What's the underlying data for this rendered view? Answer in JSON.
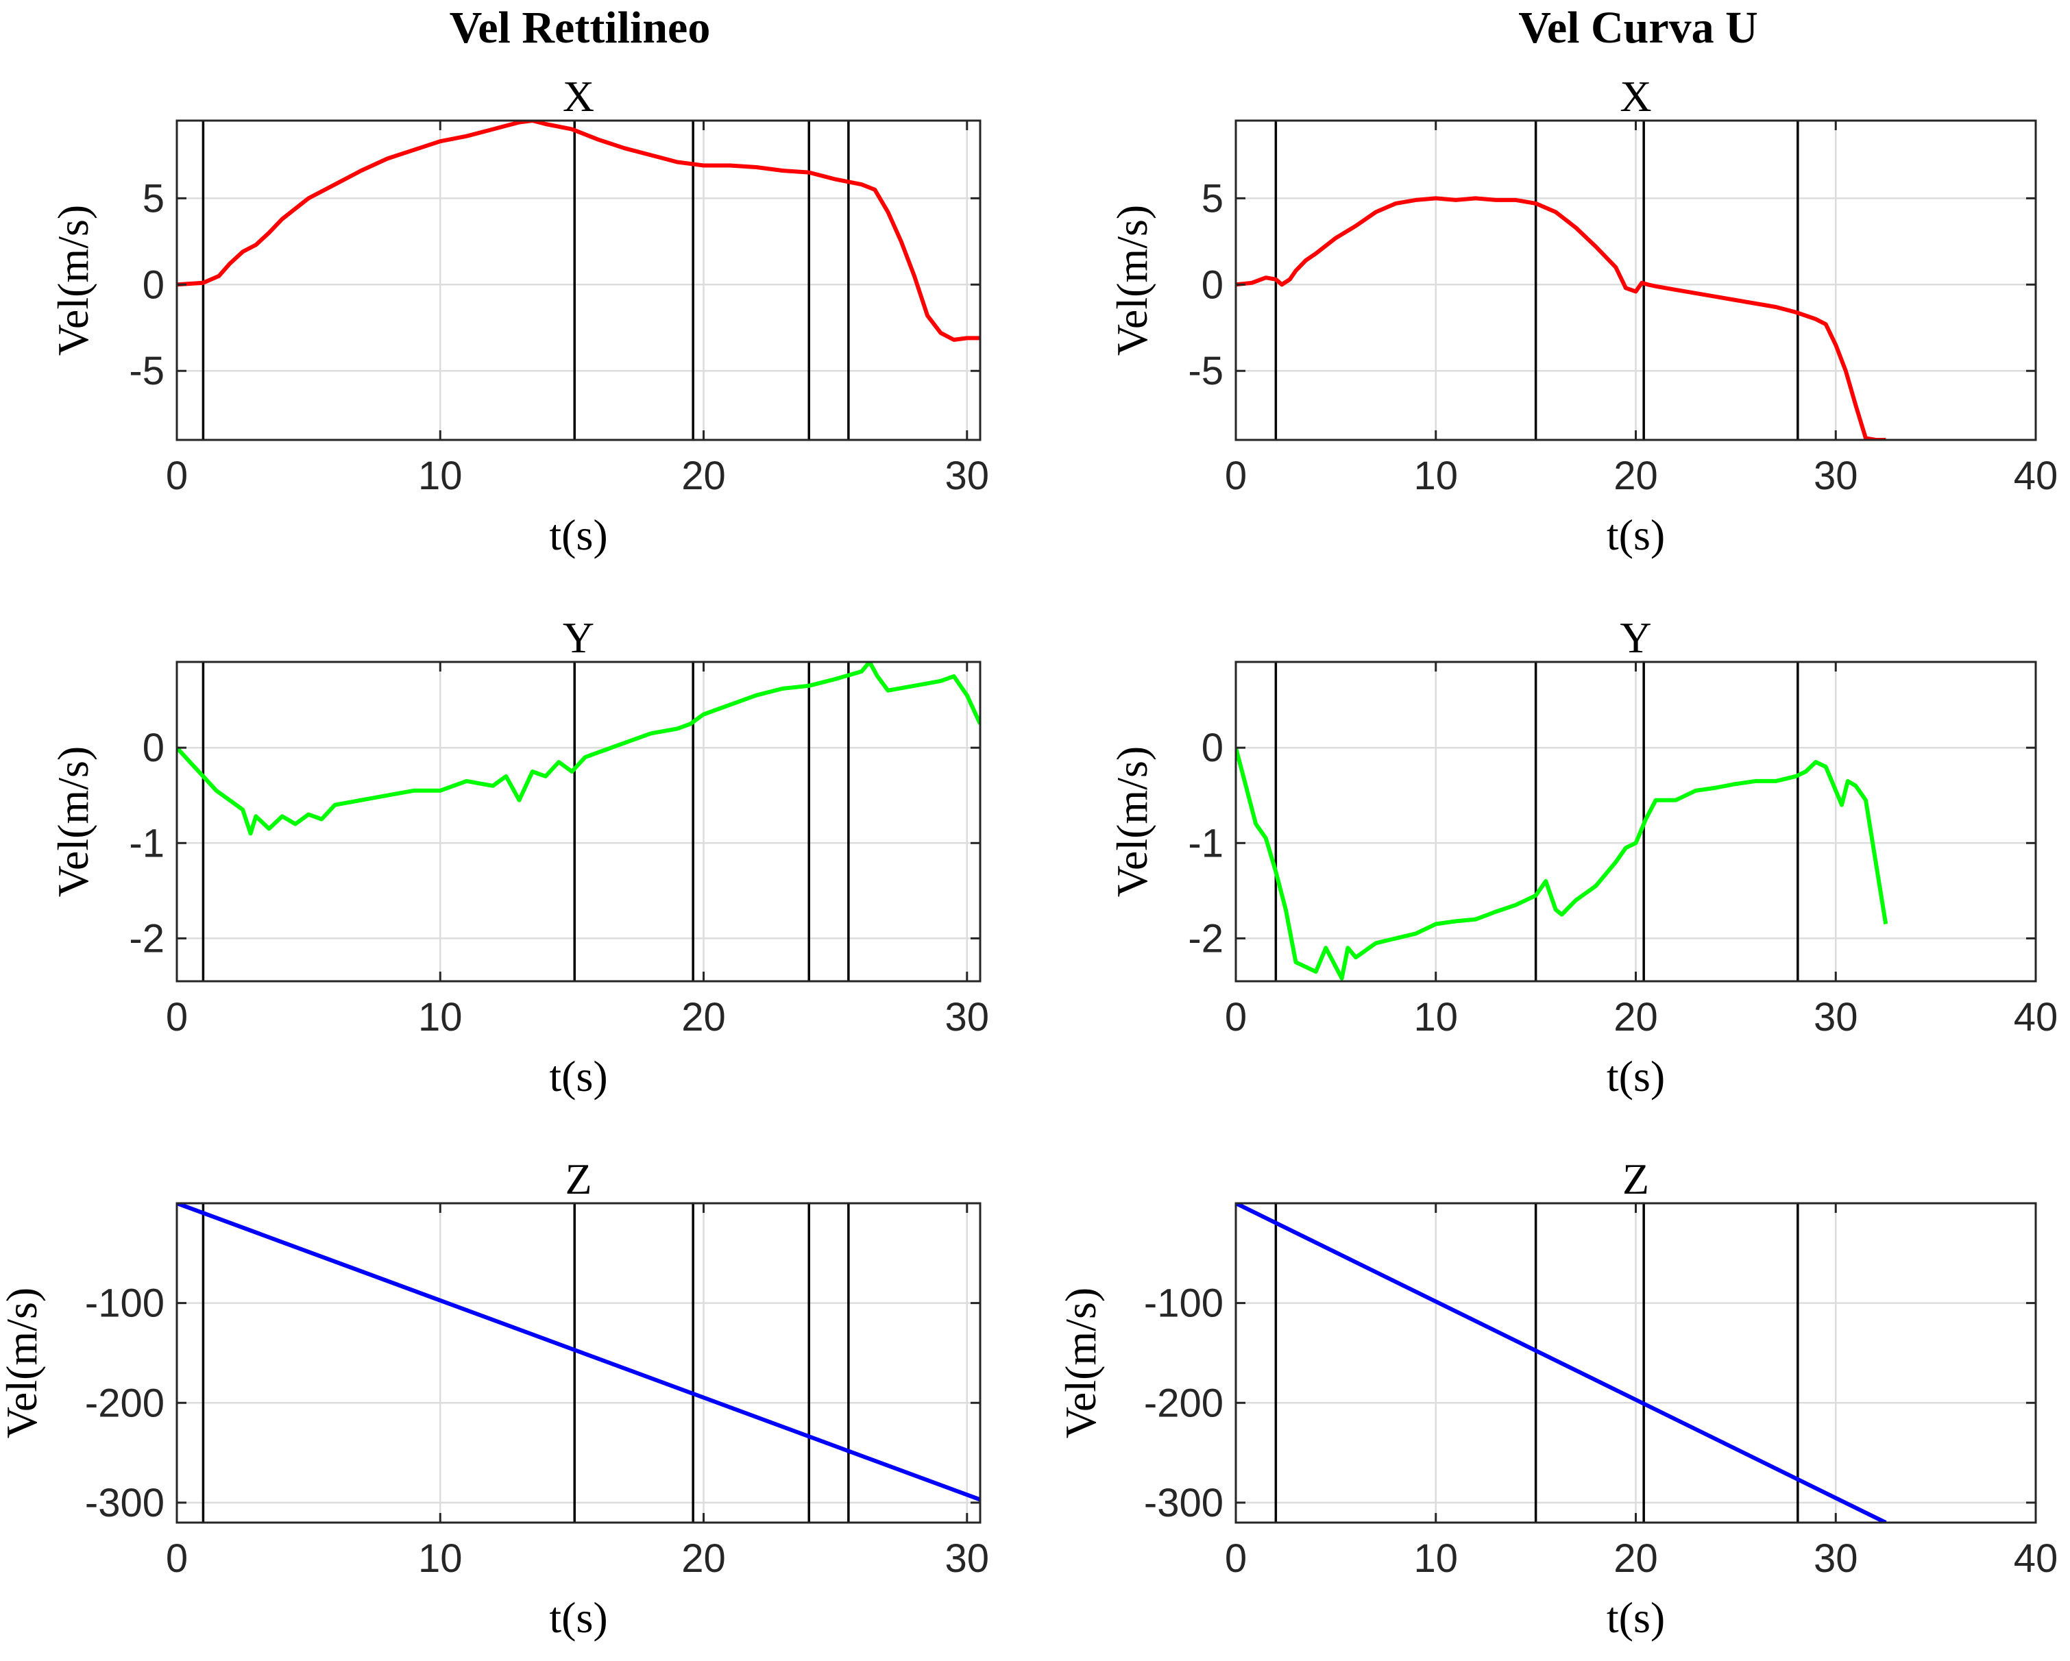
{
  "columns": [
    "Vel Rettilineo",
    "Vel Curva U"
  ],
  "chart_data": [
    {
      "type": "line",
      "title": "X",
      "column": 0,
      "xlabel": "t(s)",
      "ylabel": "Vel(m/s)",
      "xlim": [
        0,
        30.5
      ],
      "ylim": [
        -9,
        9.5
      ],
      "xticks": [
        0,
        10,
        20,
        30
      ],
      "yticks": [
        -5,
        0,
        5
      ],
      "grid": true,
      "vlines": [
        1.0,
        15.1,
        19.6,
        24.0,
        25.5
      ],
      "series": [
        {
          "color": "#ff0000",
          "x": [
            0,
            1,
            1.6,
            2,
            2.5,
            3,
            3.5,
            4,
            5,
            6,
            7,
            8,
            9,
            10,
            11,
            12,
            13,
            13.5,
            14,
            15,
            16,
            17,
            18,
            19,
            20,
            21,
            22,
            23,
            24,
            25,
            26,
            26.5,
            27,
            27.5,
            28,
            28.5,
            29,
            29.5,
            30,
            30.5
          ],
          "y": [
            0,
            0.1,
            0.5,
            1.2,
            1.9,
            2.3,
            3.0,
            3.8,
            5.0,
            5.8,
            6.6,
            7.3,
            7.8,
            8.3,
            8.6,
            9.0,
            9.4,
            9.5,
            9.3,
            9.0,
            8.4,
            7.9,
            7.5,
            7.1,
            6.9,
            6.9,
            6.8,
            6.6,
            6.5,
            6.1,
            5.8,
            5.5,
            4.2,
            2.5,
            0.5,
            -1.8,
            -2.8,
            -3.2,
            -3.1,
            -3.1
          ]
        }
      ]
    },
    {
      "type": "line",
      "title": "X",
      "column": 1,
      "xlabel": "t(s)",
      "ylabel": "Vel(m/s)",
      "xlim": [
        0,
        40
      ],
      "ylim": [
        -9,
        9.5
      ],
      "xticks": [
        0,
        10,
        20,
        30,
        40
      ],
      "yticks": [
        -5,
        0,
        5
      ],
      "grid": true,
      "vlines": [
        2.0,
        15.0,
        20.4,
        28.1
      ],
      "series": [
        {
          "color": "#ff0000",
          "x": [
            0,
            0.8,
            1.5,
            2,
            2.3,
            2.7,
            3,
            3.5,
            4,
            5,
            6,
            7,
            8,
            9,
            10,
            11,
            12,
            13,
            14,
            15,
            16,
            17,
            18,
            19,
            19.5,
            20,
            20.3,
            20.6,
            21,
            22,
            23,
            24,
            25,
            26,
            27,
            28,
            28.5,
            29,
            29.5,
            30,
            30.5,
            31,
            31.5,
            32,
            32.5
          ],
          "y": [
            0,
            0.1,
            0.4,
            0.3,
            0,
            0.3,
            0.8,
            1.4,
            1.8,
            2.7,
            3.4,
            4.2,
            4.7,
            4.9,
            5.0,
            4.9,
            5.0,
            4.9,
            4.9,
            4.7,
            4.2,
            3.3,
            2.2,
            1.0,
            -0.2,
            -0.4,
            0.1,
            0.0,
            -0.1,
            -0.3,
            -0.5,
            -0.7,
            -0.9,
            -1.1,
            -1.3,
            -1.6,
            -1.8,
            -2.0,
            -2.3,
            -3.5,
            -5.0,
            -7.0,
            -8.9,
            -9.0,
            -9.0
          ]
        }
      ]
    },
    {
      "type": "line",
      "title": "Y",
      "column": 0,
      "xlabel": "t(s)",
      "ylabel": "Vel(m/s)",
      "xlim": [
        0,
        30.5
      ],
      "ylim": [
        -2.45,
        0.9
      ],
      "xticks": [
        0,
        10,
        20,
        30
      ],
      "yticks": [
        -2,
        -1,
        0
      ],
      "grid": true,
      "vlines": [
        1.0,
        15.1,
        19.6,
        24.0,
        25.5
      ],
      "series": [
        {
          "color": "#00ff00",
          "x": [
            0,
            0.5,
            1,
            1.5,
            2,
            2.5,
            2.8,
            3,
            3.5,
            4,
            4.5,
            5,
            5.5,
            6,
            7,
            8,
            9,
            10,
            11,
            12,
            12.5,
            13,
            13.5,
            14,
            14.5,
            15,
            15.5,
            16,
            17,
            18,
            19,
            19.5,
            20,
            21,
            22,
            23,
            24,
            25,
            26,
            26.3,
            26.6,
            27,
            28,
            29,
            29.5,
            30,
            30.5
          ],
          "y": [
            0,
            -0.15,
            -0.3,
            -0.45,
            -0.55,
            -0.65,
            -0.9,
            -0.72,
            -0.85,
            -0.72,
            -0.8,
            -0.7,
            -0.75,
            -0.6,
            -0.55,
            -0.5,
            -0.45,
            -0.45,
            -0.35,
            -0.4,
            -0.3,
            -0.55,
            -0.25,
            -0.3,
            -0.15,
            -0.25,
            -0.1,
            -0.05,
            0.05,
            0.15,
            0.2,
            0.25,
            0.35,
            0.45,
            0.55,
            0.62,
            0.65,
            0.72,
            0.8,
            0.9,
            0.75,
            0.6,
            0.65,
            0.7,
            0.75,
            0.55,
            0.25
          ]
        }
      ]
    },
    {
      "type": "line",
      "title": "Y",
      "column": 1,
      "xlabel": "t(s)",
      "ylabel": "Vel(m/s)",
      "xlim": [
        0,
        40
      ],
      "ylim": [
        -2.45,
        0.9
      ],
      "xticks": [
        0,
        10,
        20,
        30,
        40
      ],
      "yticks": [
        -2,
        -1,
        0
      ],
      "grid": true,
      "vlines": [
        2.0,
        15.0,
        20.4,
        28.1
      ],
      "series": [
        {
          "color": "#00ff00",
          "x": [
            0,
            0.5,
            1,
            1.5,
            2,
            2.5,
            3,
            3.5,
            4,
            4.5,
            5,
            5.3,
            5.6,
            6,
            7,
            8,
            9,
            10,
            11,
            12,
            13,
            14,
            15,
            15.5,
            16,
            16.3,
            17,
            18,
            19,
            19.5,
            20,
            20.5,
            21,
            22,
            23,
            24,
            25,
            26,
            27,
            28,
            28.5,
            29,
            29.5,
            30,
            30.3,
            30.6,
            31,
            31.5,
            32,
            32.5
          ],
          "y": [
            0,
            -0.4,
            -0.8,
            -0.95,
            -1.3,
            -1.7,
            -2.25,
            -2.3,
            -2.35,
            -2.1,
            -2.3,
            -2.42,
            -2.1,
            -2.2,
            -2.05,
            -2.0,
            -1.95,
            -1.85,
            -1.82,
            -1.8,
            -1.72,
            -1.65,
            -1.55,
            -1.4,
            -1.7,
            -1.75,
            -1.6,
            -1.45,
            -1.2,
            -1.05,
            -1.0,
            -0.75,
            -0.55,
            -0.55,
            -0.45,
            -0.42,
            -0.38,
            -0.35,
            -0.35,
            -0.3,
            -0.25,
            -0.15,
            -0.2,
            -0.45,
            -0.6,
            -0.35,
            -0.4,
            -0.55,
            -1.2,
            -1.85
          ]
        }
      ]
    },
    {
      "type": "line",
      "title": "Z",
      "column": 0,
      "xlabel": "t(s)",
      "ylabel": "Vel(m/s)",
      "xlim": [
        0,
        30.5
      ],
      "ylim": [
        -320,
        0
      ],
      "xticks": [
        0,
        10,
        20,
        30
      ],
      "yticks": [
        -300,
        -200,
        -100
      ],
      "grid": true,
      "vlines": [
        1.0,
        15.1,
        19.6,
        24.0,
        25.5
      ],
      "series": [
        {
          "color": "#0000ff",
          "x": [
            0,
            30.5
          ],
          "y": [
            0,
            -297
          ]
        }
      ]
    },
    {
      "type": "line",
      "title": "Z",
      "column": 1,
      "xlabel": "t(s)",
      "ylabel": "Vel(m/s)",
      "xlim": [
        0,
        40
      ],
      "ylim": [
        -320,
        0
      ],
      "xticks": [
        0,
        10,
        20,
        30,
        40
      ],
      "yticks": [
        -300,
        -200,
        -100
      ],
      "grid": true,
      "vlines": [
        2.0,
        15.0,
        20.4,
        28.1
      ],
      "series": [
        {
          "color": "#0000ff",
          "x": [
            0,
            32.5
          ],
          "y": [
            0,
            -320
          ]
        }
      ]
    }
  ]
}
